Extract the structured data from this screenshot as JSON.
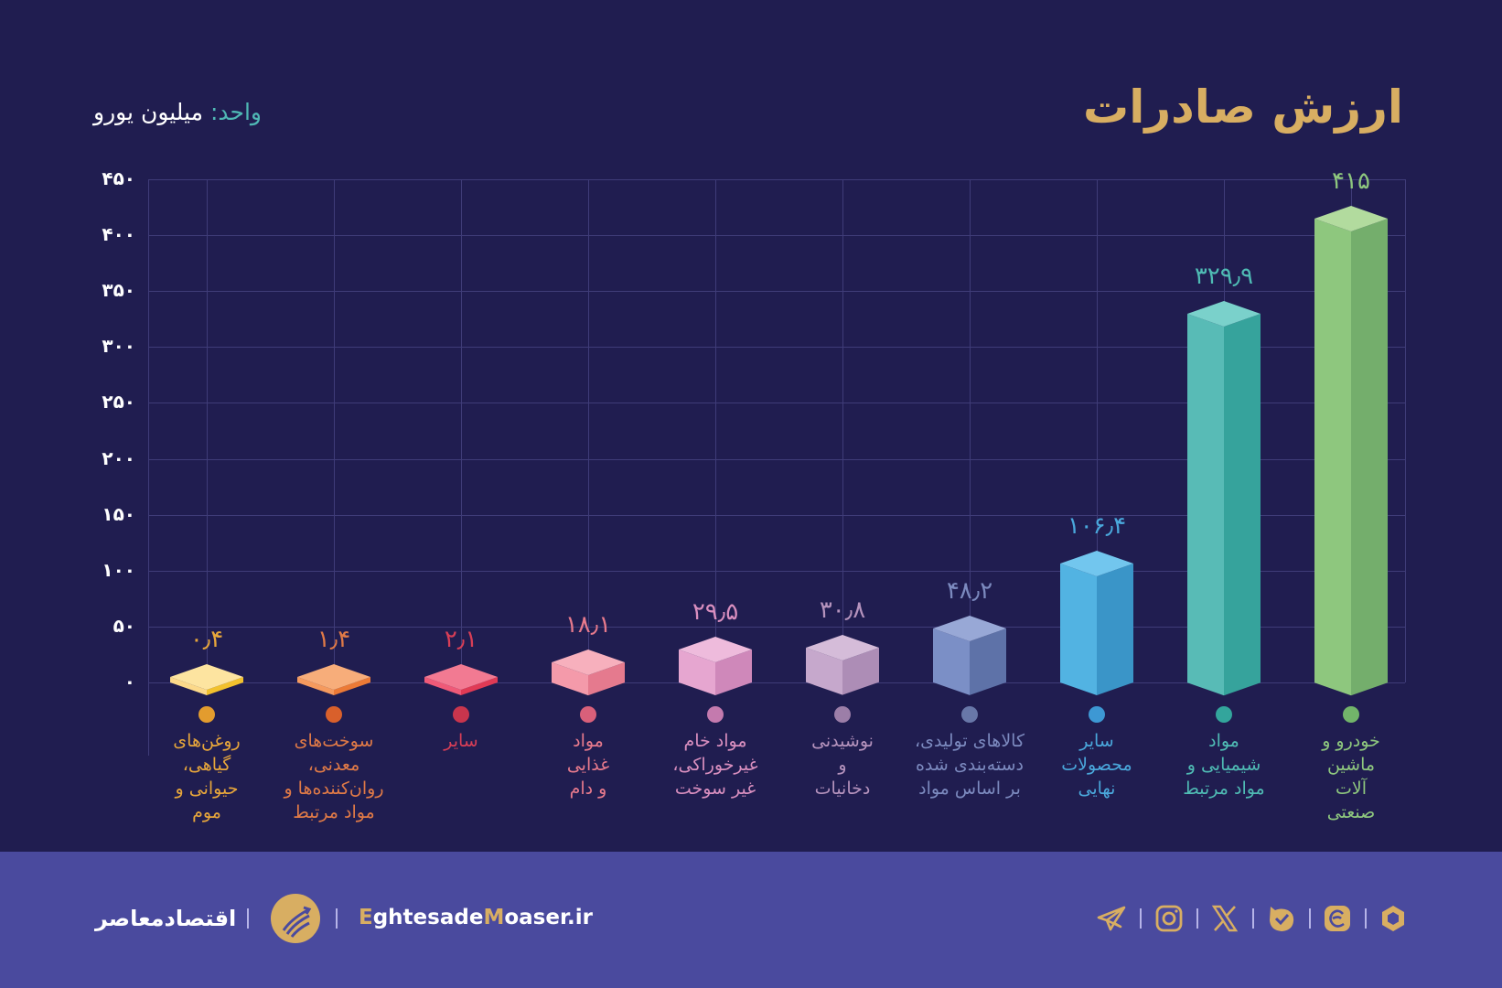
{
  "header": {
    "title": "ارزش صادرات",
    "unit_label": "واحد:",
    "unit_value": "میلیون یورو"
  },
  "colors": {
    "background": "#201d50",
    "title": "#d8ae62",
    "footer": "#4a4a9e",
    "grid": "#3f3c78"
  },
  "chart_data": {
    "type": "bar",
    "title": "ارزش صادرات",
    "ylabel": "میلیون یورو",
    "xlabel": "",
    "ylim": [
      0,
      450
    ],
    "yticks": [
      "۰",
      "۵۰",
      "۱۰۰",
      "۱۵۰",
      "۲۰۰",
      "۲۵۰",
      "۳۰۰",
      "۳۵۰",
      "۴۰۰",
      "۴۵۰"
    ],
    "grid": true,
    "categories": [
      "روغن‌های گیاهی، حیوانی و موم",
      "سوخت‌های معدنی، روان‌کننده‌ها و مواد مرتبط",
      "سایر",
      "مواد غذایی و دام",
      "مواد خام غیرخوراکی، غیر سوخت",
      "نوشیدنی و دخانیات",
      "کالاهای تولیدی، دسته‌بندی شده بر اساس مواد",
      "سایر محصولات نهایی",
      "مواد شیمیایی و مواد مرتبط",
      "خودرو و ماشین آلات صنعتی"
    ],
    "values": [
      0.4,
      1.4,
      2.1,
      18.1,
      29.5,
      30.8,
      48.2,
      106.4,
      329.9,
      415
    ],
    "value_labels": [
      "۰٫۴",
      "۱٫۴",
      "۲٫۱",
      "۱۸٫۱",
      "۲۹٫۵",
      "۳۰٫۸",
      "۴۸٫۲",
      "۱۰۶٫۴",
      "۳۲۹٫۹",
      "۴۱۵"
    ],
    "category_lines": [
      [
        "روغن‌های",
        "گیاهی،",
        "حیوانی و",
        "موم"
      ],
      [
        "سوخت‌های",
        "معدنی،",
        "روان‌کننده‌ها و",
        "مواد مرتبط"
      ],
      [
        "سایر"
      ],
      [
        "مواد",
        "غذایی",
        "و دام"
      ],
      [
        "مواد خام",
        "غیرخوراکی،",
        "غیر سوخت"
      ],
      [
        "نوشیدنی",
        "و",
        "دخانیات"
      ],
      [
        "کالاهای تولیدی،",
        "دسته‌بندی شده",
        "بر اساس مواد"
      ],
      [
        "سایر",
        "محصولات",
        "نهایی"
      ],
      [
        "مواد",
        "شیمیایی و",
        "مواد مرتبط"
      ],
      [
        "خودرو و",
        "ماشین",
        "آلات",
        "صنعتی"
      ]
    ],
    "bar_colors": [
      {
        "left": "#fcd98a",
        "right": "#f2c12e",
        "top": "#fde4a0",
        "label": "#e7a63b",
        "dot": "#e39c2e"
      },
      {
        "left": "#f59a5e",
        "right": "#ec7a36",
        "top": "#f7ad7a",
        "label": "#e07a47",
        "dot": "#d9602b"
      },
      {
        "left": "#ef5a78",
        "right": "#e03a55",
        "top": "#f27a92",
        "label": "#d83e56",
        "dot": "#c9354d"
      },
      {
        "left": "#f49aaa",
        "right": "#e57a8e",
        "top": "#f7b0bd",
        "label": "#e77a8c",
        "dot": "#d9607a"
      },
      {
        "left": "#e6a6d0",
        "right": "#cf88ba",
        "top": "#eebbdc",
        "label": "#d98fbf",
        "dot": "#c47aae"
      },
      {
        "left": "#c6a8cc",
        "right": "#ad8db6",
        "top": "#d5bcd9",
        "label": "#b593bd",
        "dot": "#9c7ea8"
      },
      {
        "left": "#7b8fc6",
        "right": "#5e72a8",
        "top": "#98a8d6",
        "label": "#7c8abf",
        "dot": "#6877a8"
      },
      {
        "left": "#52b3e2",
        "right": "#3a95c8",
        "top": "#72c6ee",
        "label": "#4aa8dc",
        "dot": "#3d98d4"
      },
      {
        "left": "#58bbb6",
        "right": "#36a39c",
        "top": "#7ad1cb",
        "label": "#4fbbb4",
        "dot": "#33a59c"
      },
      {
        "left": "#8ec77e",
        "right": "#74ae6c",
        "top": "#b2db9e",
        "label": "#8ec77e",
        "dot": "#72b46a"
      }
    ]
  },
  "footer": {
    "brand_name": "اقتصادمعاصر",
    "website_prefix_e": "E",
    "website_mid": "ghtesade",
    "website_m": "M",
    "website_suffix": "oaser.ir",
    "social_icons": [
      "telegram-icon",
      "instagram-icon",
      "x-icon",
      "bale-icon",
      "eitaa-icon",
      "rubika-icon"
    ]
  }
}
